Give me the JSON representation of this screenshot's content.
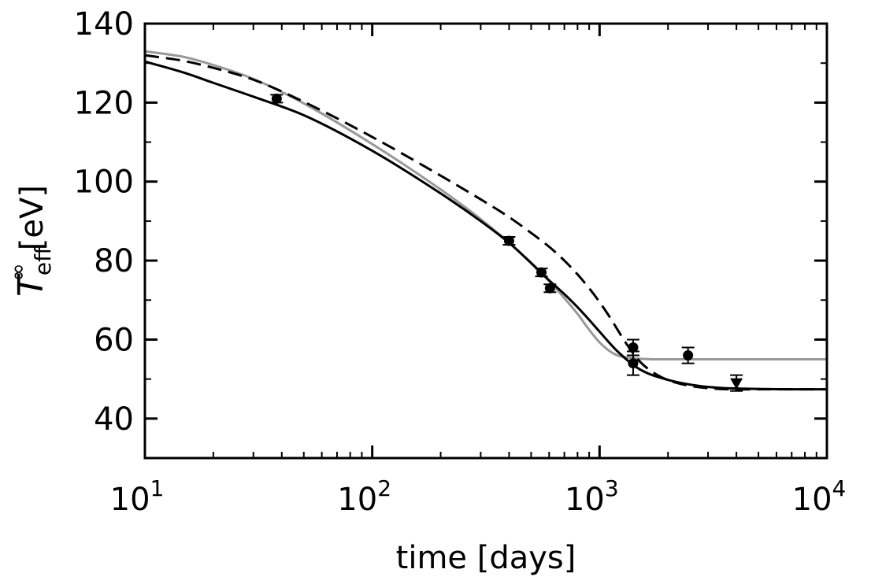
{
  "chart_data": {
    "type": "line",
    "xlabel": "time [days]",
    "ylabel": "T_eff^∞ [eV]",
    "ylabel_symbol": "T",
    "ylabel_subscript": "eff",
    "ylabel_superscript": "∞",
    "ylabel_unit": "[eV]",
    "xscale": "log",
    "xlim": [
      10,
      10000
    ],
    "ylim": [
      30,
      140
    ],
    "x_ticks": [
      {
        "value": 10,
        "base": "10",
        "exp": "1"
      },
      {
        "value": 100,
        "base": "10",
        "exp": "2"
      },
      {
        "value": 1000,
        "base": "10",
        "exp": "3"
      },
      {
        "value": 10000,
        "base": "10",
        "exp": "4"
      }
    ],
    "y_ticks": [
      {
        "value": 40,
        "label": "40"
      },
      {
        "value": 60,
        "label": "60"
      },
      {
        "value": 80,
        "label": "80"
      },
      {
        "value": 100,
        "label": "100"
      },
      {
        "value": 120,
        "label": "120"
      },
      {
        "value": 140,
        "label": "140"
      }
    ],
    "grid": false,
    "legend": "none",
    "series": [
      {
        "style": "solid",
        "color": "#999999",
        "x": [
          10,
          15,
          20,
          30,
          50,
          100,
          200,
          300,
          400,
          500,
          600,
          700,
          800,
          900,
          1000,
          1100,
          1200,
          1400,
          1700,
          2000,
          3000,
          5000,
          10000
        ],
        "y": [
          133,
          131.5,
          129.5,
          126,
          119.8,
          109.5,
          98,
          90.5,
          84.5,
          79.3,
          74.8,
          70.5,
          66.5,
          62.5,
          59.3,
          57.2,
          56,
          55.3,
          55,
          55,
          55,
          55,
          55
        ]
      },
      {
        "style": "solid",
        "color": "#000000",
        "x": [
          10,
          15,
          20,
          30,
          50,
          100,
          200,
          300,
          400,
          500,
          600,
          700,
          800,
          900,
          1000,
          1200,
          1500,
          2000,
          3000,
          5000,
          10000
        ],
        "y": [
          130.4,
          127.5,
          125,
          121.5,
          116.8,
          107.8,
          97,
          90,
          84.5,
          79.4,
          75,
          71.5,
          68.2,
          65,
          62,
          57,
          52.5,
          49.8,
          48,
          47.5,
          47.4
        ]
      },
      {
        "style": "dashed",
        "color": "#000000",
        "x": [
          10,
          15,
          20,
          30,
          50,
          100,
          200,
          300,
          400,
          500,
          600,
          700,
          800,
          900,
          1000,
          1100,
          1200,
          1300,
          1500,
          1800,
          2200,
          3000,
          5000,
          10000
        ],
        "y": [
          132,
          130.5,
          128.8,
          125.8,
          120.2,
          111.3,
          101.5,
          95.5,
          91,
          87,
          83.5,
          80,
          76.5,
          73,
          69.5,
          66,
          62.5,
          59.3,
          54.5,
          51,
          49,
          47.7,
          47.4,
          47.4
        ]
      }
    ],
    "observations": [
      {
        "x": 38,
        "y": 121,
        "err": 1,
        "marker": "circle"
      },
      {
        "x": 400,
        "y": 85,
        "err": 1,
        "marker": "circle"
      },
      {
        "x": 555,
        "y": 77,
        "err": 1,
        "marker": "circle"
      },
      {
        "x": 605,
        "y": 73,
        "err": 1,
        "marker": "circle"
      },
      {
        "x": 1405,
        "y": 58,
        "err": 2,
        "marker": "circle"
      },
      {
        "x": 1405,
        "y": 54,
        "err": 3,
        "marker": "circle"
      },
      {
        "x": 2450,
        "y": 56,
        "err": 2,
        "marker": "circle"
      },
      {
        "x": 4000,
        "y": 49,
        "err": 2,
        "marker": "triangle-down"
      }
    ]
  }
}
